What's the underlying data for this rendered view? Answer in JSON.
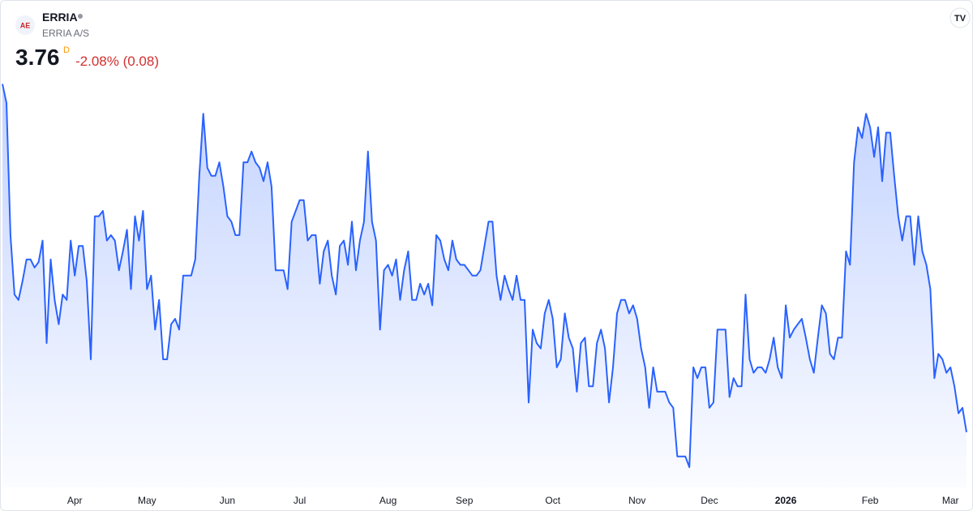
{
  "header": {
    "symbol": "ERRIA",
    "name": "ERRIA A/S",
    "price": "3.76",
    "interval": "D",
    "change": "-2.08% (0.08)"
  },
  "chart_data": {
    "type": "area",
    "color": "#2962ff",
    "values": [
      5.05,
      4.98,
      4.49,
      4.27,
      4.25,
      4.32,
      4.4,
      4.4,
      4.37,
      4.39,
      4.47,
      4.09,
      4.4,
      4.25,
      4.16,
      4.27,
      4.25,
      4.47,
      4.34,
      4.45,
      4.45,
      4.32,
      4.03,
      4.56,
      4.56,
      4.58,
      4.47,
      4.49,
      4.47,
      4.36,
      4.43,
      4.51,
      4.29,
      4.56,
      4.47,
      4.58,
      4.29,
      4.34,
      4.14,
      4.25,
      4.03,
      4.03,
      4.16,
      4.18,
      4.14,
      4.34,
      4.34,
      4.34,
      4.4,
      4.71,
      4.94,
      4.74,
      4.71,
      4.71,
      4.76,
      4.67,
      4.56,
      4.54,
      4.49,
      4.49,
      4.76,
      4.76,
      4.8,
      4.76,
      4.74,
      4.69,
      4.76,
      4.67,
      4.36,
      4.36,
      4.36,
      4.29,
      4.54,
      4.58,
      4.62,
      4.62,
      4.47,
      4.49,
      4.49,
      4.31,
      4.43,
      4.47,
      4.34,
      4.27,
      4.45,
      4.47,
      4.38,
      4.54,
      4.36,
      4.47,
      4.54,
      4.8,
      4.54,
      4.47,
      4.14,
      4.36,
      4.38,
      4.34,
      4.4,
      4.25,
      4.36,
      4.43,
      4.25,
      4.25,
      4.31,
      4.27,
      4.31,
      4.23,
      4.49,
      4.47,
      4.4,
      4.36,
      4.47,
      4.4,
      4.38,
      4.38,
      4.36,
      4.34,
      4.34,
      4.36,
      4.45,
      4.54,
      4.54,
      4.34,
      4.25,
      4.34,
      4.29,
      4.25,
      4.34,
      4.25,
      4.25,
      3.87,
      4.14,
      4.09,
      4.07,
      4.2,
      4.25,
      4.18,
      4.0,
      4.03,
      4.2,
      4.11,
      4.07,
      3.91,
      4.09,
      4.11,
      3.93,
      3.93,
      4.09,
      4.14,
      4.07,
      3.87,
      4.0,
      4.2,
      4.25,
      4.25,
      4.2,
      4.23,
      4.18,
      4.07,
      4.0,
      3.85,
      4.0,
      3.91,
      3.91,
      3.91,
      3.87,
      3.85,
      3.67,
      3.67,
      3.67,
      3.63,
      4.0,
      3.96,
      4.0,
      4.0,
      3.85,
      3.87,
      4.14,
      4.14,
      4.14,
      3.89,
      3.96,
      3.93,
      3.93,
      4.27,
      4.03,
      3.98,
      4.0,
      4.0,
      3.98,
      4.03,
      4.11,
      4.0,
      3.96,
      4.23,
      4.11,
      4.14,
      4.16,
      4.18,
      4.11,
      4.03,
      3.98,
      4.11,
      4.23,
      4.2,
      4.05,
      4.03,
      4.11,
      4.11,
      4.43,
      4.38,
      4.76,
      4.89,
      4.85,
      4.94,
      4.89,
      4.78,
      4.89,
      4.69,
      4.87,
      4.87,
      4.71,
      4.56,
      4.47,
      4.56,
      4.56,
      4.38,
      4.56,
      4.43,
      4.38,
      4.29,
      3.96,
      4.05,
      4.03,
      3.98,
      4.0,
      3.93,
      3.83,
      3.85,
      3.76
    ],
    "xlim": [
      0,
      240
    ],
    "ylim": [
      3.6,
      5.1
    ],
    "xticks": [
      {
        "value": 18,
        "label": "Apr"
      },
      {
        "value": 36,
        "label": "May"
      },
      {
        "value": 56,
        "label": "Jun"
      },
      {
        "value": 74,
        "label": "Jul"
      },
      {
        "value": 96,
        "label": "Aug"
      },
      {
        "value": 115,
        "label": "Sep"
      },
      {
        "value": 137,
        "label": "Oct"
      },
      {
        "value": 158,
        "label": "Nov"
      },
      {
        "value": 176,
        "label": "Dec"
      },
      {
        "value": 195,
        "label": "2026"
      },
      {
        "value": 216,
        "label": "Feb"
      },
      {
        "value": 236,
        "label": "Mar"
      }
    ]
  }
}
